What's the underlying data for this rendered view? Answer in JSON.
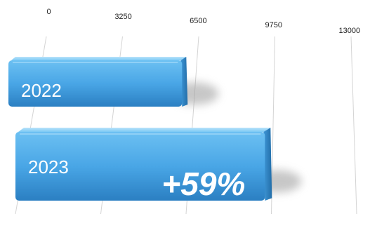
{
  "chart_data": {
    "type": "bar",
    "orientation": "horizontal",
    "style": "3d",
    "categories": [
      "2022",
      "2023"
    ],
    "values": [
      5950,
      9460
    ],
    "xlim": [
      0,
      13000
    ],
    "ticks": [
      "0",
      "3250",
      "6500",
      "9750",
      "13000"
    ],
    "tick_values": [
      0,
      3250,
      6500,
      9750,
      13000
    ],
    "grid": true,
    "bar_color": "#4aa3e3",
    "annotation": {
      "text": "+59%",
      "on_category": "2023"
    }
  }
}
